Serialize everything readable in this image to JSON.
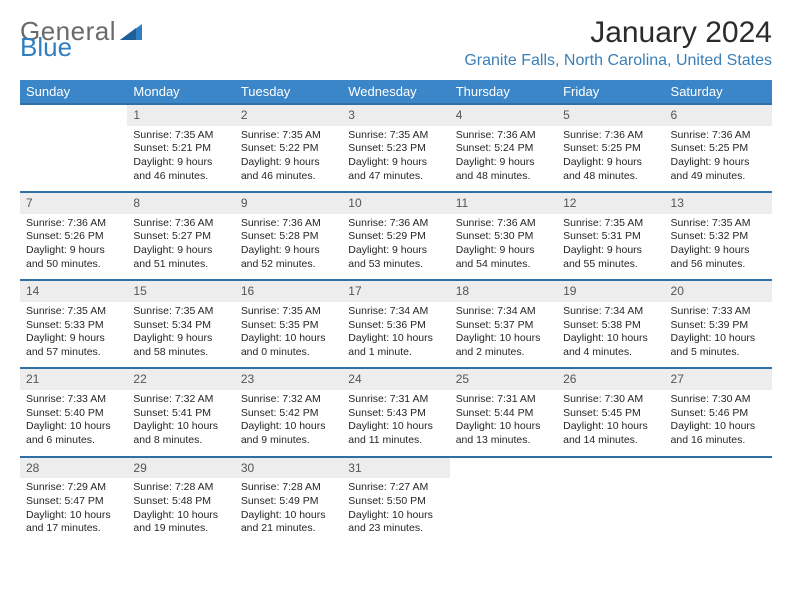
{
  "logo": {
    "text1": "General",
    "text2": "Blue"
  },
  "title": "January 2024",
  "location": "Granite Falls, North Carolina, United States",
  "colors": {
    "header_bg": "#3a86c8",
    "header_text": "#ffffff",
    "daynum_bg": "#ededed",
    "rule": "#2f6fa6",
    "location_text": "#3a7fb8",
    "logo_gray": "#6a6a6a",
    "logo_blue": "#2f7fc2"
  },
  "typography": {
    "title_fontsize": 30,
    "location_fontsize": 16,
    "header_fontsize": 13,
    "daynum_fontsize": 12,
    "cell_fontsize": 10.5
  },
  "weekdays": [
    "Sunday",
    "Monday",
    "Tuesday",
    "Wednesday",
    "Thursday",
    "Friday",
    "Saturday"
  ],
  "weeks": [
    [
      null,
      {
        "n": "1",
        "sr": "7:35 AM",
        "ss": "5:21 PM",
        "dl": "9 hours and 46 minutes."
      },
      {
        "n": "2",
        "sr": "7:35 AM",
        "ss": "5:22 PM",
        "dl": "9 hours and 46 minutes."
      },
      {
        "n": "3",
        "sr": "7:35 AM",
        "ss": "5:23 PM",
        "dl": "9 hours and 47 minutes."
      },
      {
        "n": "4",
        "sr": "7:36 AM",
        "ss": "5:24 PM",
        "dl": "9 hours and 48 minutes."
      },
      {
        "n": "5",
        "sr": "7:36 AM",
        "ss": "5:25 PM",
        "dl": "9 hours and 48 minutes."
      },
      {
        "n": "6",
        "sr": "7:36 AM",
        "ss": "5:25 PM",
        "dl": "9 hours and 49 minutes."
      }
    ],
    [
      {
        "n": "7",
        "sr": "7:36 AM",
        "ss": "5:26 PM",
        "dl": "9 hours and 50 minutes."
      },
      {
        "n": "8",
        "sr": "7:36 AM",
        "ss": "5:27 PM",
        "dl": "9 hours and 51 minutes."
      },
      {
        "n": "9",
        "sr": "7:36 AM",
        "ss": "5:28 PM",
        "dl": "9 hours and 52 minutes."
      },
      {
        "n": "10",
        "sr": "7:36 AM",
        "ss": "5:29 PM",
        "dl": "9 hours and 53 minutes."
      },
      {
        "n": "11",
        "sr": "7:36 AM",
        "ss": "5:30 PM",
        "dl": "9 hours and 54 minutes."
      },
      {
        "n": "12",
        "sr": "7:35 AM",
        "ss": "5:31 PM",
        "dl": "9 hours and 55 minutes."
      },
      {
        "n": "13",
        "sr": "7:35 AM",
        "ss": "5:32 PM",
        "dl": "9 hours and 56 minutes."
      }
    ],
    [
      {
        "n": "14",
        "sr": "7:35 AM",
        "ss": "5:33 PM",
        "dl": "9 hours and 57 minutes."
      },
      {
        "n": "15",
        "sr": "7:35 AM",
        "ss": "5:34 PM",
        "dl": "9 hours and 58 minutes."
      },
      {
        "n": "16",
        "sr": "7:35 AM",
        "ss": "5:35 PM",
        "dl": "10 hours and 0 minutes."
      },
      {
        "n": "17",
        "sr": "7:34 AM",
        "ss": "5:36 PM",
        "dl": "10 hours and 1 minute."
      },
      {
        "n": "18",
        "sr": "7:34 AM",
        "ss": "5:37 PM",
        "dl": "10 hours and 2 minutes."
      },
      {
        "n": "19",
        "sr": "7:34 AM",
        "ss": "5:38 PM",
        "dl": "10 hours and 4 minutes."
      },
      {
        "n": "20",
        "sr": "7:33 AM",
        "ss": "5:39 PM",
        "dl": "10 hours and 5 minutes."
      }
    ],
    [
      {
        "n": "21",
        "sr": "7:33 AM",
        "ss": "5:40 PM",
        "dl": "10 hours and 6 minutes."
      },
      {
        "n": "22",
        "sr": "7:32 AM",
        "ss": "5:41 PM",
        "dl": "10 hours and 8 minutes."
      },
      {
        "n": "23",
        "sr": "7:32 AM",
        "ss": "5:42 PM",
        "dl": "10 hours and 9 minutes."
      },
      {
        "n": "24",
        "sr": "7:31 AM",
        "ss": "5:43 PM",
        "dl": "10 hours and 11 minutes."
      },
      {
        "n": "25",
        "sr": "7:31 AM",
        "ss": "5:44 PM",
        "dl": "10 hours and 13 minutes."
      },
      {
        "n": "26",
        "sr": "7:30 AM",
        "ss": "5:45 PM",
        "dl": "10 hours and 14 minutes."
      },
      {
        "n": "27",
        "sr": "7:30 AM",
        "ss": "5:46 PM",
        "dl": "10 hours and 16 minutes."
      }
    ],
    [
      {
        "n": "28",
        "sr": "7:29 AM",
        "ss": "5:47 PM",
        "dl": "10 hours and 17 minutes."
      },
      {
        "n": "29",
        "sr": "7:28 AM",
        "ss": "5:48 PM",
        "dl": "10 hours and 19 minutes."
      },
      {
        "n": "30",
        "sr": "7:28 AM",
        "ss": "5:49 PM",
        "dl": "10 hours and 21 minutes."
      },
      {
        "n": "31",
        "sr": "7:27 AM",
        "ss": "5:50 PM",
        "dl": "10 hours and 23 minutes."
      },
      null,
      null,
      null
    ]
  ],
  "labels": {
    "sunrise": "Sunrise:",
    "sunset": "Sunset:",
    "daylight": "Daylight:"
  }
}
